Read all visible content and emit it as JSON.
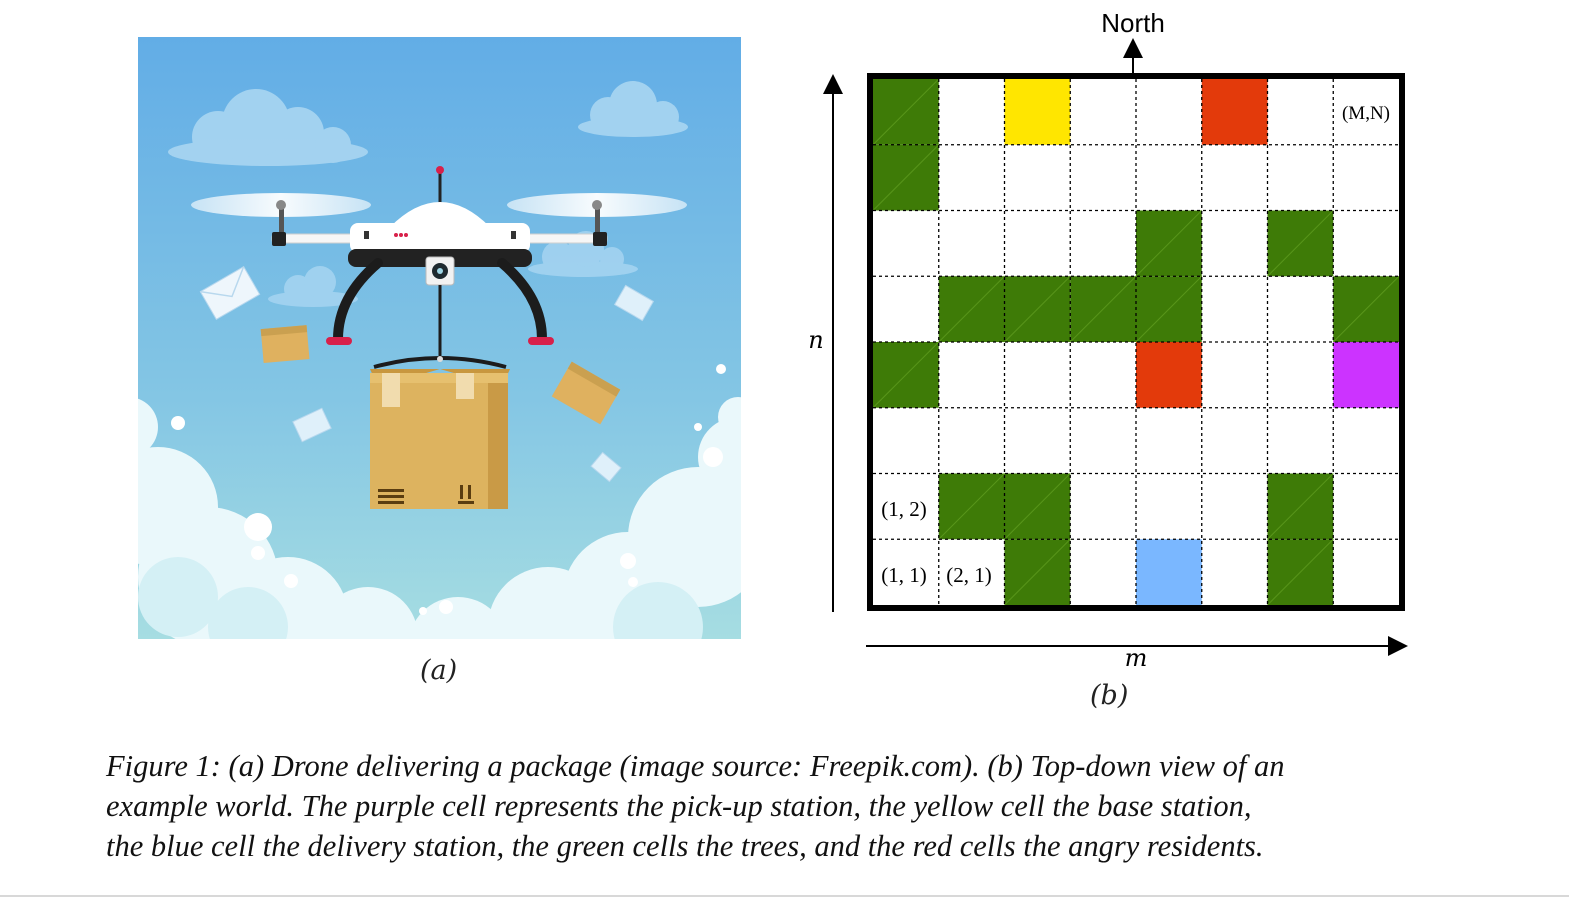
{
  "figure": {
    "panel_a": {
      "label": "(a)"
    },
    "panel_b": {
      "label": "(b)",
      "north_label": "North",
      "axis_n_label": "n",
      "axis_m_label": "m",
      "cell_labels": {
        "mn": "(M,N)",
        "c12": "(1, 2)",
        "c11": "(1, 1)",
        "c21": "(2, 1)"
      },
      "colors": {
        "tree": "#3e7b07",
        "base": "#ffe600",
        "angry": "#e33a0b",
        "pickup": "#cc33ff",
        "delivery": "#7ab7ff"
      },
      "grid": {
        "columns": 8,
        "rows": 8,
        "cells": [
          {
            "col": 1,
            "row": 8,
            "type": "tree"
          },
          {
            "col": 3,
            "row": 8,
            "type": "base"
          },
          {
            "col": 6,
            "row": 8,
            "type": "angry"
          },
          {
            "col": 1,
            "row": 7,
            "type": "tree"
          },
          {
            "col": 5,
            "row": 6,
            "type": "tree"
          },
          {
            "col": 7,
            "row": 6,
            "type": "tree"
          },
          {
            "col": 2,
            "row": 5,
            "type": "tree"
          },
          {
            "col": 3,
            "row": 5,
            "type": "tree"
          },
          {
            "col": 4,
            "row": 5,
            "type": "tree"
          },
          {
            "col": 5,
            "row": 5,
            "type": "tree"
          },
          {
            "col": 8,
            "row": 5,
            "type": "tree"
          },
          {
            "col": 1,
            "row": 4,
            "type": "tree"
          },
          {
            "col": 5,
            "row": 4,
            "type": "angry"
          },
          {
            "col": 8,
            "row": 4,
            "type": "pickup"
          },
          {
            "col": 2,
            "row": 2,
            "type": "tree"
          },
          {
            "col": 3,
            "row": 2,
            "type": "tree"
          },
          {
            "col": 7,
            "row": 2,
            "type": "tree"
          },
          {
            "col": 3,
            "row": 1,
            "type": "tree"
          },
          {
            "col": 5,
            "row": 1,
            "type": "delivery"
          },
          {
            "col": 7,
            "row": 1,
            "type": "tree"
          }
        ]
      }
    },
    "caption_lines": [
      "Figure 1: (a) Drone delivering a package (image source: Freepik.com). (b) Top-down view of an",
      "example world. The purple cell represents the pick-up station, the yellow cell the base station,",
      "the blue cell the delivery station, the green cells the trees, and the red cells the angry residents."
    ]
  }
}
